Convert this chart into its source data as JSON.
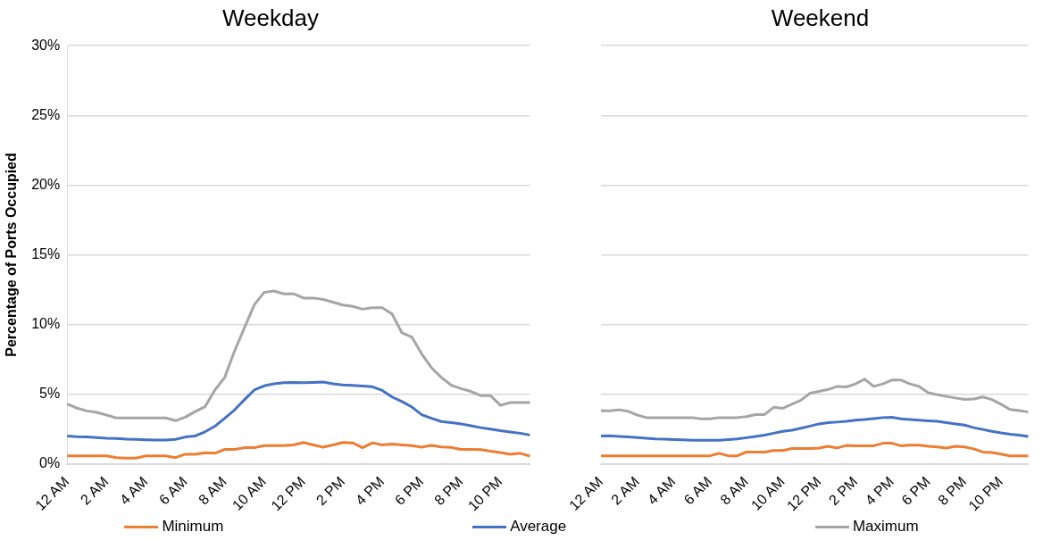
{
  "chart_data": [
    {
      "type": "line",
      "title": "Weekday",
      "ylabel": "Percentage of Ports Occupied",
      "categories": [
        "12 AM",
        null,
        null,
        null,
        "2 AM",
        null,
        null,
        null,
        "4 AM",
        null,
        null,
        null,
        "6 AM",
        null,
        null,
        null,
        "8 AM",
        null,
        null,
        null,
        "10 AM",
        null,
        null,
        null,
        "12 PM",
        null,
        null,
        null,
        "2 PM",
        null,
        null,
        null,
        "4 PM",
        null,
        null,
        null,
        "6 PM",
        null,
        null,
        null,
        "8 PM",
        null,
        null,
        null,
        "10 PM",
        null,
        null,
        null
      ],
      "series": [
        {
          "name": "Minimum",
          "color": "#ed7d31",
          "values": [
            0.58,
            0.58,
            0.58,
            0.58,
            0.58,
            0.45,
            0.42,
            0.42,
            0.58,
            0.58,
            0.58,
            0.45,
            0.69,
            0.69,
            0.8,
            0.76,
            1.04,
            1.04,
            1.16,
            1.16,
            1.31,
            1.31,
            1.31,
            1.36,
            1.53,
            1.36,
            1.2,
            1.36,
            1.53,
            1.51,
            1.16,
            1.51,
            1.36,
            1.42,
            1.36,
            1.31,
            1.2,
            1.33,
            1.22,
            1.18,
            1.04,
            1.04,
            1.02,
            0.91,
            0.82,
            0.69,
            0.76,
            0.56
          ]
        },
        {
          "name": "Average",
          "color": "#4472c4",
          "values": [
            2.0,
            1.95,
            1.93,
            1.88,
            1.84,
            1.82,
            1.78,
            1.76,
            1.73,
            1.71,
            1.71,
            1.76,
            1.93,
            2.0,
            2.3,
            2.7,
            3.27,
            3.87,
            4.6,
            5.3,
            5.6,
            5.75,
            5.82,
            5.84,
            5.82,
            5.84,
            5.87,
            5.75,
            5.67,
            5.64,
            5.58,
            5.53,
            5.27,
            4.8,
            4.47,
            4.09,
            3.53,
            3.27,
            3.04,
            2.96,
            2.87,
            2.73,
            2.6,
            2.49,
            2.38,
            2.29,
            2.2,
            2.07
          ]
        },
        {
          "name": "Maximum",
          "color": "#a5a5a5",
          "values": [
            4.3,
            4.0,
            3.8,
            3.7,
            3.5,
            3.3,
            3.3,
            3.3,
            3.3,
            3.3,
            3.3,
            3.1,
            3.35,
            3.75,
            4.1,
            5.3,
            6.2,
            8.1,
            9.75,
            11.4,
            12.3,
            12.4,
            12.2,
            12.2,
            11.9,
            11.9,
            11.8,
            11.6,
            11.4,
            11.3,
            11.1,
            11.2,
            11.2,
            10.75,
            9.4,
            9.1,
            7.9,
            6.9,
            6.2,
            5.65,
            5.4,
            5.2,
            4.9,
            4.9,
            4.2,
            4.4,
            4.4,
            4.4
          ]
        }
      ],
      "ylim": [
        0,
        30
      ],
      "yticks": [
        {
          "value": 0,
          "label": "0%"
        },
        {
          "value": 5,
          "label": "5%"
        },
        {
          "value": 10,
          "label": "10%"
        },
        {
          "value": 15,
          "label": "15%"
        },
        {
          "value": 20,
          "label": "20%"
        },
        {
          "value": 25,
          "label": "25%"
        },
        {
          "value": 30,
          "label": "30%"
        }
      ],
      "grid": "y",
      "legend": "bottom",
      "marker": "none"
    },
    {
      "type": "line",
      "title": "Weekend",
      "categories": [
        "12 AM",
        null,
        null,
        null,
        "2 AM",
        null,
        null,
        null,
        "4 AM",
        null,
        null,
        null,
        "6 AM",
        null,
        null,
        null,
        "8 AM",
        null,
        null,
        null,
        "10 AM",
        null,
        null,
        null,
        "12 PM",
        null,
        null,
        null,
        "2 PM",
        null,
        null,
        null,
        "4 PM",
        null,
        null,
        null,
        "6 PM",
        null,
        null,
        null,
        "8 PM",
        null,
        null,
        null,
        "10 PM",
        null,
        null,
        null
      ],
      "series": [
        {
          "color": "#ed7d31",
          "values": [
            0.58,
            0.58,
            0.58,
            0.58,
            0.58,
            0.58,
            0.58,
            0.58,
            0.58,
            0.58,
            0.58,
            0.58,
            0.58,
            0.76,
            0.58,
            0.58,
            0.85,
            0.85,
            0.85,
            0.96,
            0.96,
            1.1,
            1.1,
            1.1,
            1.14,
            1.26,
            1.14,
            1.32,
            1.3,
            1.3,
            1.3,
            1.48,
            1.48,
            1.3,
            1.35,
            1.35,
            1.26,
            1.21,
            1.14,
            1.26,
            1.21,
            1.08,
            0.85,
            0.81,
            0.7,
            0.58,
            0.58,
            0.58
          ]
        },
        {
          "color": "#4472c4",
          "values": [
            2.0,
            2.02,
            1.97,
            1.93,
            1.88,
            1.84,
            1.79,
            1.77,
            1.75,
            1.73,
            1.7,
            1.7,
            1.7,
            1.7,
            1.75,
            1.79,
            1.88,
            1.97,
            2.06,
            2.2,
            2.33,
            2.42,
            2.56,
            2.71,
            2.87,
            2.96,
            3.0,
            3.05,
            3.14,
            3.18,
            3.25,
            3.32,
            3.34,
            3.23,
            3.18,
            3.14,
            3.09,
            3.05,
            2.96,
            2.87,
            2.78,
            2.6,
            2.47,
            2.33,
            2.22,
            2.13,
            2.06,
            1.97
          ]
        },
        {
          "color": "#a5a5a5",
          "values": [
            3.81,
            3.81,
            3.88,
            3.77,
            3.5,
            3.32,
            3.32,
            3.32,
            3.32,
            3.32,
            3.32,
            3.23,
            3.23,
            3.32,
            3.32,
            3.32,
            3.39,
            3.54,
            3.54,
            4.06,
            3.99,
            4.28,
            4.57,
            5.07,
            5.2,
            5.34,
            5.56,
            5.52,
            5.74,
            6.08,
            5.56,
            5.74,
            6.01,
            6.01,
            5.74,
            5.56,
            5.11,
            4.96,
            4.84,
            4.73,
            4.62,
            4.66,
            4.8,
            4.62,
            4.28,
            3.9,
            3.83,
            3.72
          ]
        }
      ],
      "ylim": [
        0,
        30
      ],
      "yticks": [
        {
          "value": 0,
          "label": null
        },
        {
          "value": 5,
          "label": null
        },
        {
          "value": 10,
          "label": null
        },
        {
          "value": 15,
          "label": null
        },
        {
          "value": 20,
          "label": null
        },
        {
          "value": 25,
          "label": null
        },
        {
          "value": 30,
          "label": null
        }
      ],
      "grid": "y",
      "tick_labels": "x",
      "marker": "none"
    }
  ]
}
